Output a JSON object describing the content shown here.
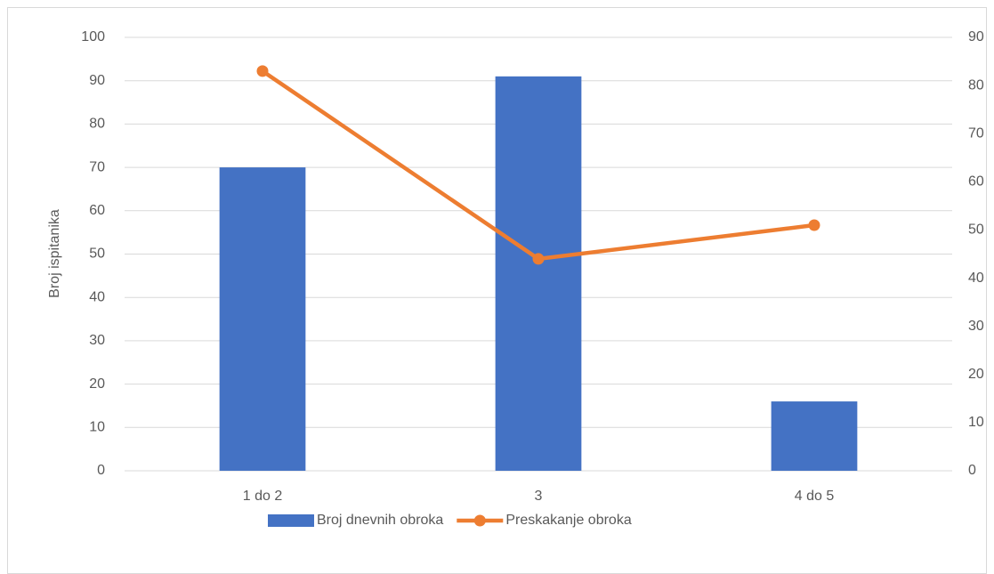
{
  "chart_data": {
    "type": "combo",
    "y_label": "Broj ispitanika",
    "categories": [
      "1 do 2",
      "3",
      "4 do 5"
    ],
    "series": [
      {
        "name": "Broj dnevnih obroka",
        "type": "bar",
        "color": "#4472c4",
        "values": [
          70,
          91,
          16
        ]
      },
      {
        "name": "Preskakanje obroka",
        "type": "line",
        "color": "#ed7d31",
        "axis": "y2",
        "values": [
          83,
          44,
          51
        ]
      }
    ],
    "ylim": [
      0,
      100
    ],
    "yticks": [
      0,
      10,
      20,
      30,
      40,
      50,
      60,
      70,
      80,
      90,
      100
    ],
    "y2lim": [
      0,
      90
    ],
    "y2ticks": [
      0,
      10,
      20,
      30,
      40,
      50,
      60,
      70,
      80,
      90
    ],
    "grid": true,
    "legend": "bottom"
  }
}
